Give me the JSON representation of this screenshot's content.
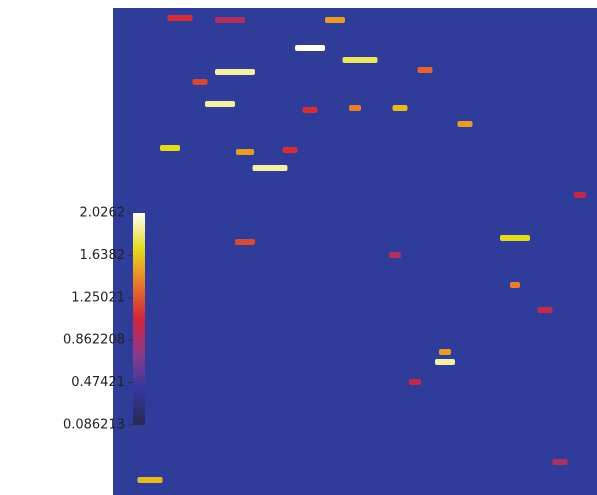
{
  "chart_data": {
    "type": "heatmap",
    "background_color": "#2f3c9a",
    "colormap": [
      "#2a2850",
      "#33389c",
      "#8a3a8a",
      "#d0243c",
      "#e8782a",
      "#e4dc1c",
      "#ffffff"
    ],
    "clim": [
      0.086213,
      2.0262
    ],
    "colorbar_ticks": [
      {
        "value": 2.0262,
        "label": "2.0262"
      },
      {
        "value": 1.6382,
        "label": "1.6382"
      },
      {
        "value": 1.25021,
        "label": "1.25021"
      },
      {
        "value": 0.862208,
        "label": "0.862208"
      },
      {
        "value": 0.47421,
        "label": "0.47421"
      },
      {
        "value": 0.086213,
        "label": "0.086213"
      }
    ],
    "xlim": [
      0,
      484
    ],
    "ylim": [
      0,
      487
    ],
    "spots": {
      "x": [
        222,
        197,
        247,
        122,
        107,
        157,
        57,
        132,
        312,
        287,
        352,
        402,
        332,
        332,
        37,
        132,
        67,
        117,
        197,
        242,
        467,
        432,
        402,
        87,
        177,
        302,
        447,
        282
      ],
      "y": [
        12,
        40,
        52,
        64,
        96,
        160,
        140,
        144,
        62,
        100,
        116,
        230,
        354,
        344,
        472,
        234,
        10,
        12,
        102,
        100,
        187,
        302,
        277,
        74,
        142,
        374,
        454,
        247
      ],
      "width": [
        20,
        30,
        35,
        40,
        30,
        35,
        20,
        18,
        15,
        15,
        15,
        30,
        20,
        12,
        25,
        20,
        25,
        30,
        15,
        12,
        12,
        15,
        10,
        15,
        15,
        12,
        15,
        12
      ],
      "values": [
        1.5,
        2.0,
        1.8,
        1.9,
        1.9,
        1.9,
        1.7,
        1.5,
        1.3,
        1.6,
        1.5,
        1.7,
        1.9,
        1.5,
        1.6,
        1.2,
        1.1,
        0.9,
        1.1,
        1.4,
        1.0,
        1.0,
        1.4,
        1.2,
        1.1,
        1.0,
        0.9,
        0.9
      ]
    }
  }
}
